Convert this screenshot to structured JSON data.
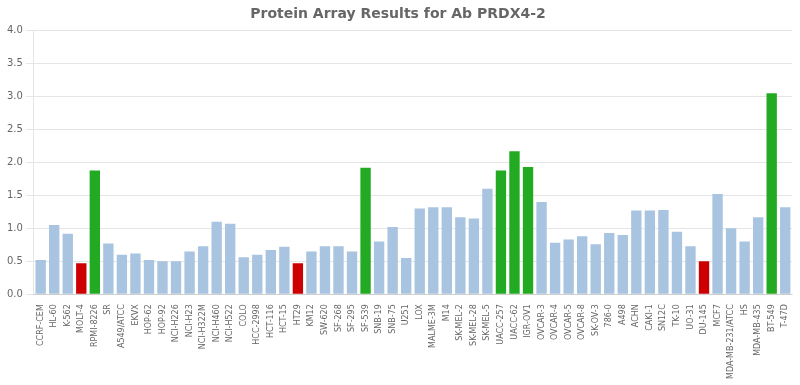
{
  "chart_data": {
    "type": "bar",
    "title": "Protein Array Results for Ab PRDX4-2",
    "categories": [
      "CCRF-CEM",
      "HL-60",
      "K-562",
      "MOLT-4",
      "RPMI-8226",
      "SR",
      "A549/ATCC",
      "EKVX",
      "HOP-62",
      "HOP-92",
      "NCI-H226",
      "NCI-H23",
      "NCI-H322M",
      "NCI-H460",
      "NCI-H522",
      "COLO",
      "HCC-2998",
      "HCT-116",
      "HCT-15",
      "HT29",
      "KM12",
      "SW-620",
      "SF-268",
      "SF-295",
      "SF-539",
      "SNB-19",
      "SNB-75",
      "U251",
      "LOX",
      "MALME-3M",
      "M14",
      "SK-MEL-2",
      "SK-MEL-28",
      "SK-MEL-5",
      "UACC-257",
      "UACC-62",
      "IGR-OV1",
      "OVCAR-3",
      "OVCAR-4",
      "OVCAR-5",
      "OVCAR-8",
      "SK-OV-3",
      "786-0",
      "A498",
      "ACHN",
      "CAKI-1",
      "SN12C",
      "TK-10",
      "UO-31",
      "DU-145",
      "MCF7",
      "MDA-MB-231/ATCC",
      "HS",
      "MDA-MB-435",
      "BT-549",
      "T-47D"
    ],
    "values": [
      0.52,
      1.05,
      0.92,
      0.47,
      1.88,
      0.77,
      0.6,
      0.62,
      0.52,
      0.5,
      0.5,
      0.65,
      0.73,
      1.1,
      1.07,
      0.56,
      0.6,
      0.67,
      0.72,
      0.47,
      0.65,
      0.73,
      0.73,
      0.65,
      1.92,
      0.8,
      1.02,
      0.55,
      1.3,
      1.32,
      1.32,
      1.17,
      1.15,
      1.6,
      1.88,
      2.17,
      1.93,
      1.4,
      0.78,
      0.83,
      0.88,
      0.76,
      0.93,
      0.9,
      1.27,
      1.27,
      1.28,
      0.95,
      0.73,
      0.5,
      1.52,
      1.0,
      0.8,
      1.17,
      3.05,
      1.32
    ],
    "colors": [
      "#a8c4e0",
      "#a8c4e0",
      "#a8c4e0",
      "#cc0000",
      "#22aa22",
      "#a8c4e0",
      "#a8c4e0",
      "#a8c4e0",
      "#a8c4e0",
      "#a8c4e0",
      "#a8c4e0",
      "#a8c4e0",
      "#a8c4e0",
      "#a8c4e0",
      "#a8c4e0",
      "#a8c4e0",
      "#a8c4e0",
      "#a8c4e0",
      "#a8c4e0",
      "#cc0000",
      "#a8c4e0",
      "#a8c4e0",
      "#a8c4e0",
      "#a8c4e0",
      "#22aa22",
      "#a8c4e0",
      "#a8c4e0",
      "#a8c4e0",
      "#a8c4e0",
      "#a8c4e0",
      "#a8c4e0",
      "#a8c4e0",
      "#a8c4e0",
      "#a8c4e0",
      "#22aa22",
      "#22aa22",
      "#22aa22",
      "#a8c4e0",
      "#a8c4e0",
      "#a8c4e0",
      "#a8c4e0",
      "#a8c4e0",
      "#a8c4e0",
      "#a8c4e0",
      "#a8c4e0",
      "#a8c4e0",
      "#a8c4e0",
      "#a8c4e0",
      "#a8c4e0",
      "#cc0000",
      "#a8c4e0",
      "#a8c4e0",
      "#a8c4e0",
      "#a8c4e0",
      "#22aa22",
      "#a8c4e0"
    ],
    "ylim": [
      0.0,
      4.0
    ],
    "yticks": [
      {
        "value": 0,
        "label": "0.0"
      },
      0.5,
      {
        "value": 1,
        "label": "1.0"
      },
      1.5,
      {
        "value": 2,
        "label": "2.0"
      },
      2.5,
      {
        "value": 3,
        "label": "3.0"
      },
      3.5,
      {
        "value": 4,
        "label": "4.0"
      }
    ],
    "grid": true
  }
}
